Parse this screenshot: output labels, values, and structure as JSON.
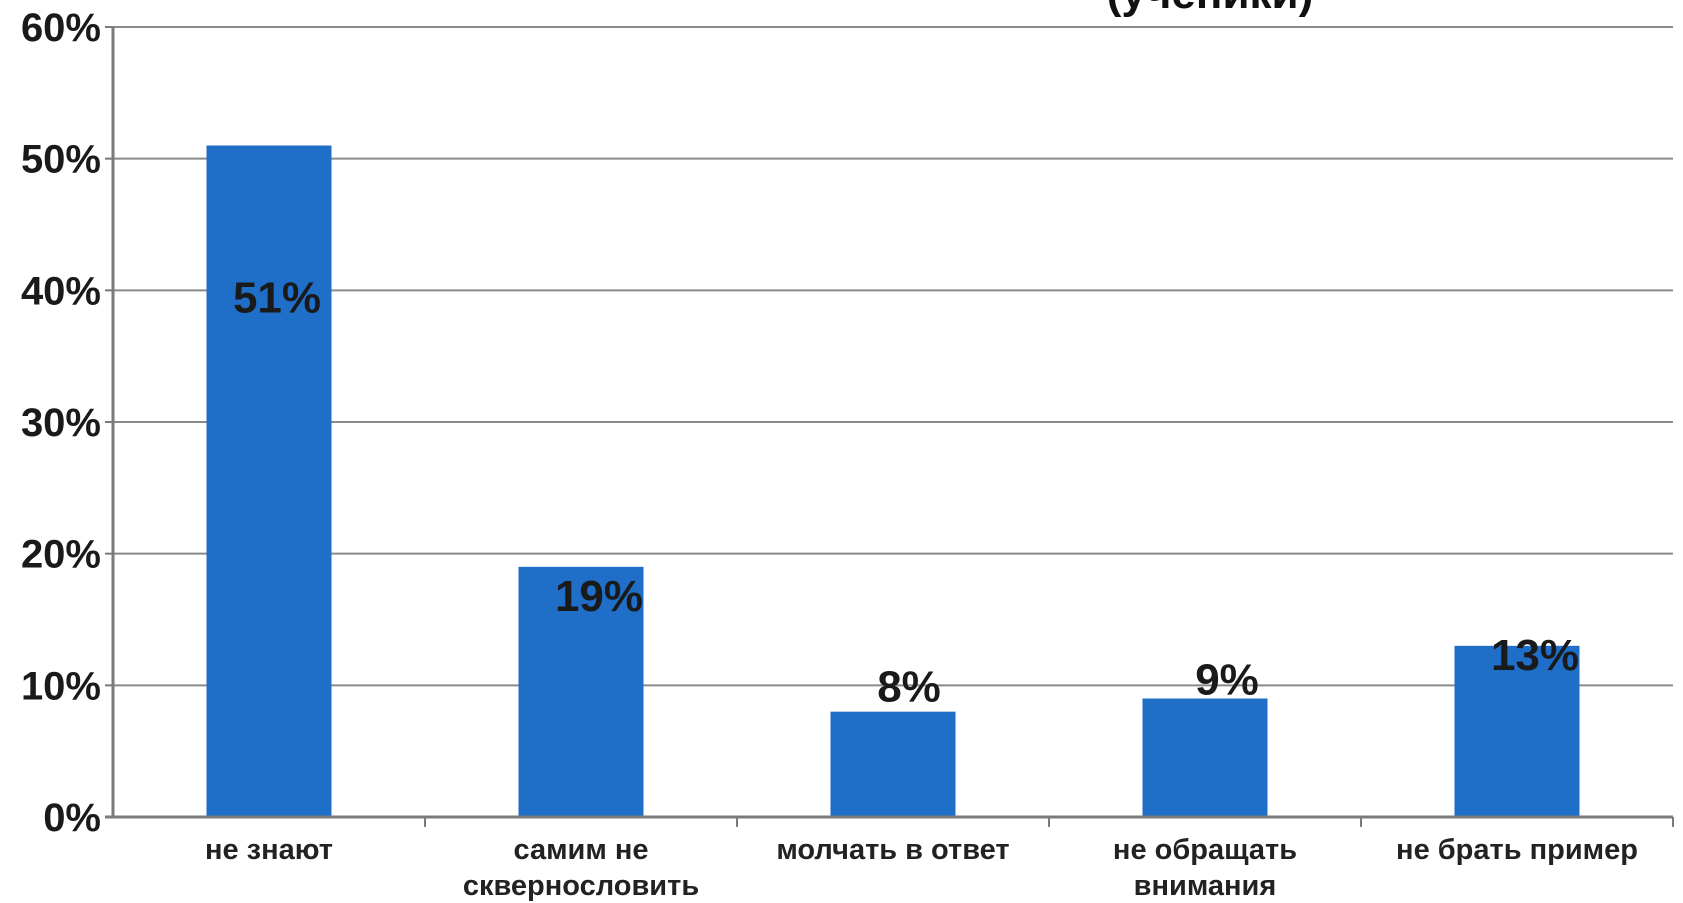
{
  "chart_data": {
    "type": "bar",
    "title": "(ученики)",
    "categories": [
      [
        "не знают"
      ],
      [
        "самим не",
        "сквернословить"
      ],
      [
        "молчать в ответ"
      ],
      [
        "не обращать",
        "внимания"
      ],
      [
        "не брать пример"
      ]
    ],
    "values": [
      51,
      19,
      8,
      9,
      13
    ],
    "data_labels": [
      "51%",
      "19%",
      "8%",
      "9%",
      "13%"
    ],
    "ylim": [
      0,
      60
    ],
    "yticks": [
      "0%",
      "10%",
      "20%",
      "30%",
      "40%",
      "50%",
      "60%"
    ],
    "grid": true,
    "legend": "none",
    "colors": {
      "bar": "#1f6fc8",
      "grid": "#8a8a8a",
      "axis": "#7a7a7a"
    }
  }
}
